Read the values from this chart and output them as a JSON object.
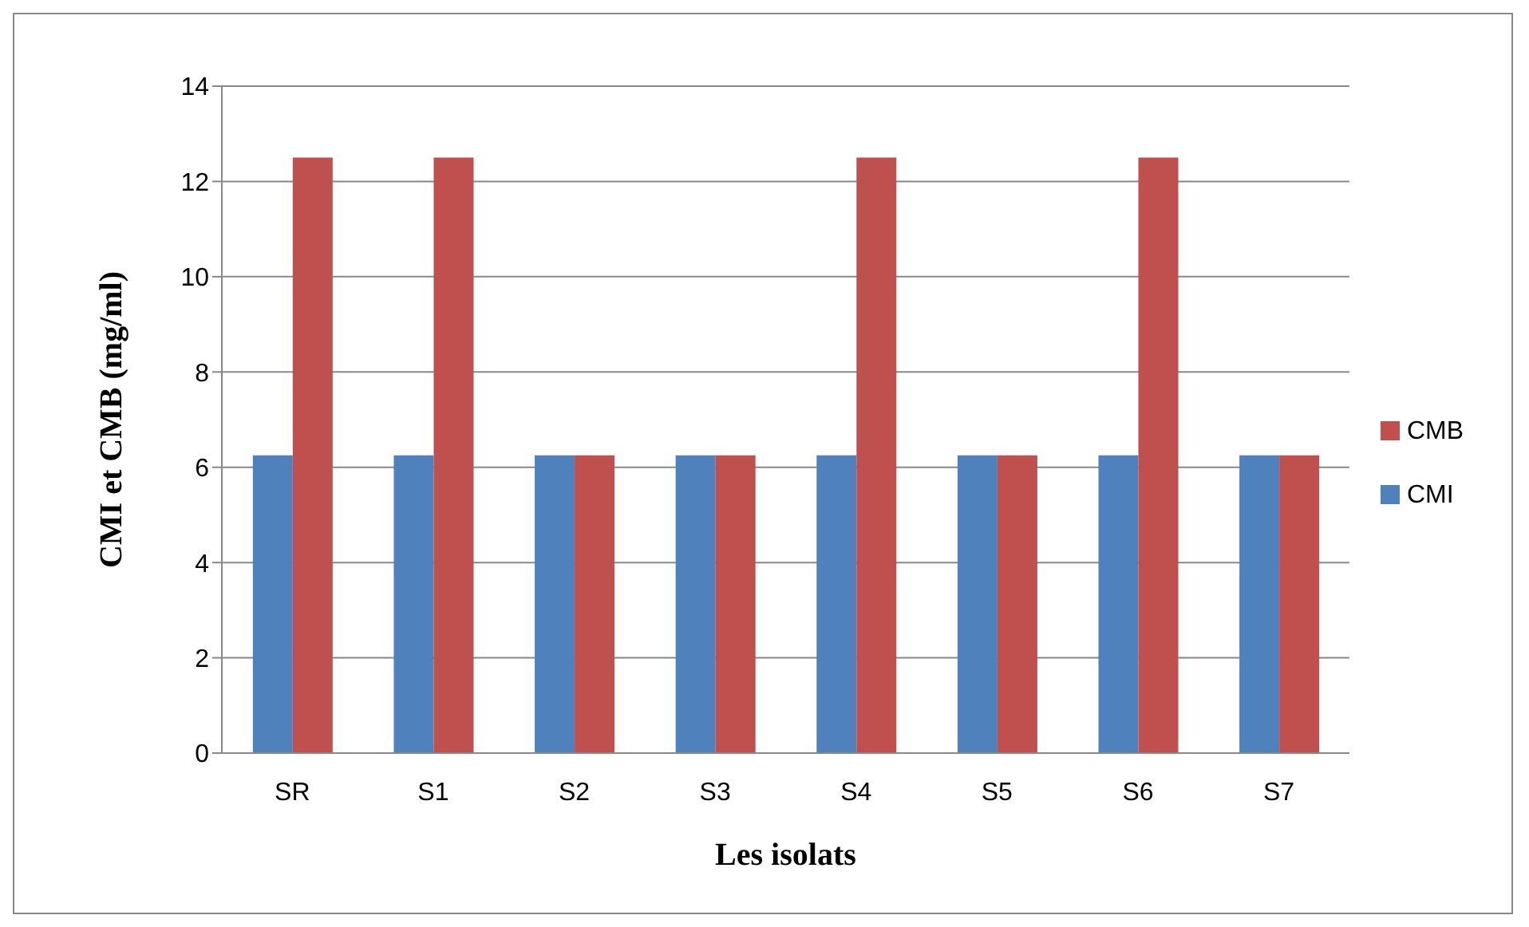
{
  "chart_data": {
    "type": "bar",
    "xlabel": "Les isolats",
    "ylabel": "CMI et CMB (mg/ml)",
    "categories": [
      "SR",
      "S1",
      "S2",
      "S3",
      "S4",
      "S5",
      "S6",
      "S7"
    ],
    "series": [
      {
        "name": "CMI",
        "color": "#4f81bd",
        "values": [
          6.25,
          6.25,
          6.25,
          6.25,
          6.25,
          6.25,
          6.25,
          6.25
        ]
      },
      {
        "name": "CMB",
        "color": "#c0504d",
        "values": [
          12.5,
          12.5,
          6.25,
          6.25,
          12.5,
          6.25,
          12.5,
          6.25
        ]
      }
    ],
    "ylim": [
      0,
      14
    ],
    "yticks": [
      0,
      2,
      4,
      6,
      8,
      10,
      12,
      14
    ],
    "grid": "y",
    "legend": "right"
  }
}
